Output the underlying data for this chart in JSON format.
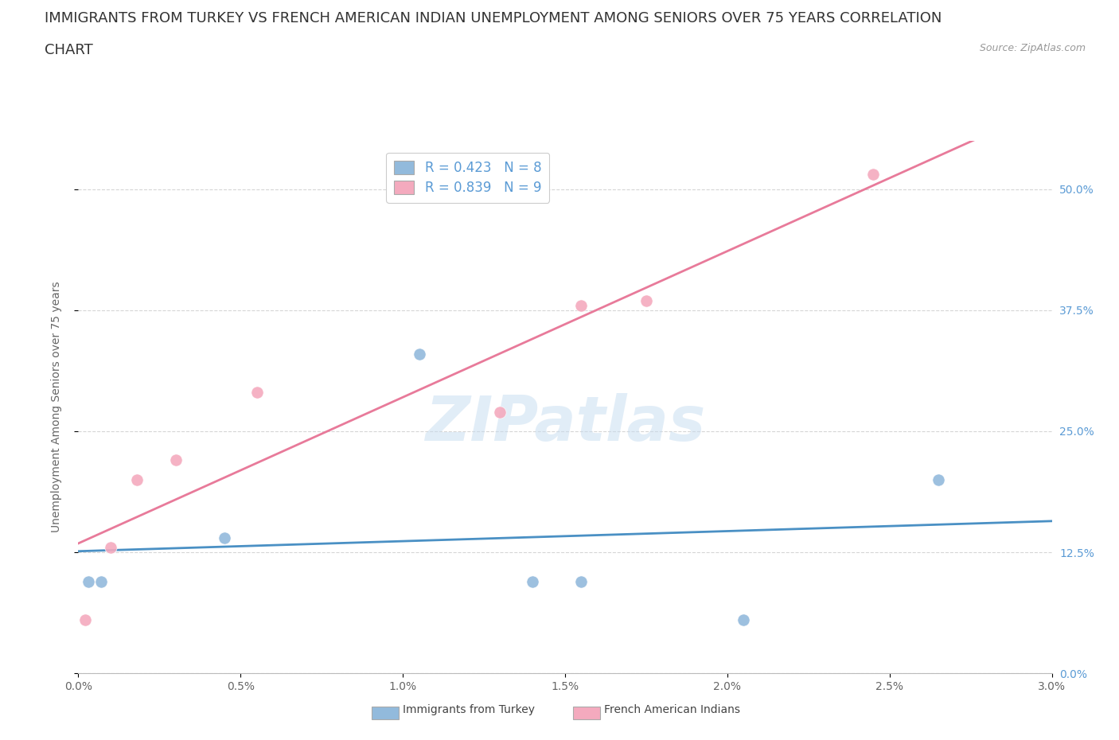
{
  "title_line1": "IMMIGRANTS FROM TURKEY VS FRENCH AMERICAN INDIAN UNEMPLOYMENT AMONG SENIORS OVER 75 YEARS CORRELATION",
  "title_line2": "CHART",
  "source": "Source: ZipAtlas.com",
  "ylabel": "Unemployment Among Seniors over 75 years",
  "xlim": [
    0.0,
    3.0
  ],
  "ylim": [
    0.0,
    55.0
  ],
  "xticks": [
    0.0,
    0.5,
    1.0,
    1.5,
    2.0,
    2.5,
    3.0
  ],
  "yticks": [
    0.0,
    12.5,
    25.0,
    37.5,
    50.0
  ],
  "blue_scatter_x": [
    0.03,
    0.07,
    0.45,
    1.05,
    1.4,
    1.55,
    2.65,
    2.05
  ],
  "blue_scatter_y": [
    9.5,
    9.5,
    14.0,
    33.0,
    9.5,
    9.5,
    20.0,
    5.5
  ],
  "pink_scatter_x": [
    0.02,
    0.1,
    0.18,
    0.3,
    0.55,
    1.3,
    1.55,
    1.75,
    2.45
  ],
  "pink_scatter_y": [
    5.5,
    13.0,
    20.0,
    22.0,
    29.0,
    27.0,
    38.0,
    38.5,
    51.5
  ],
  "blue_R": 0.423,
  "blue_N": 8,
  "pink_R": 0.839,
  "pink_N": 9,
  "blue_color": "#92BADC",
  "pink_color": "#F4AABE",
  "blue_line_color": "#4A90C4",
  "pink_line_color": "#E87A9A",
  "legend_label_blue": "Immigrants from Turkey",
  "legend_label_pink": "French American Indians",
  "title_fontsize": 13,
  "ylabel_fontsize": 10,
  "tick_fontsize": 10,
  "legend_fontsize": 12,
  "watermark": "ZIPatlas",
  "background_color": "#ffffff",
  "grid_color": "#cccccc",
  "ytick_color": "#5B9BD5",
  "xtick_color": "#666666",
  "title_color": "#333333",
  "source_color": "#999999",
  "ylabel_color": "#666666"
}
